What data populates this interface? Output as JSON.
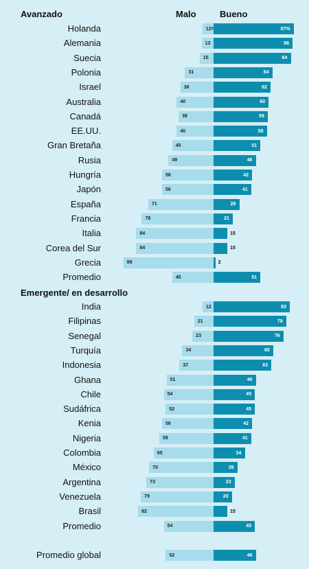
{
  "chart_data": {
    "type": "bar",
    "orientation": "horizontal-diverging",
    "headers": {
      "bad": "Malo",
      "good": "Bueno"
    },
    "colors": {
      "bad": "#a6dcec",
      "good": "#0e8eae",
      "background": "#d6eef5"
    },
    "groups": [
      {
        "name": "Avanzado",
        "rows": [
          {
            "country": "Holanda",
            "malo": 12,
            "bueno": 87,
            "malo_label": "12%",
            "bueno_label": "87%"
          },
          {
            "country": "Alemania",
            "malo": 13,
            "bueno": 86
          },
          {
            "country": "Suecia",
            "malo": 15,
            "bueno": 84
          },
          {
            "country": "Polonia",
            "malo": 31,
            "bueno": 64
          },
          {
            "country": "Israel",
            "malo": 36,
            "bueno": 62
          },
          {
            "country": "Australia",
            "malo": 40,
            "bueno": 60
          },
          {
            "country": "Canadá",
            "malo": 38,
            "bueno": 59
          },
          {
            "country": "EE.UU.",
            "malo": 40,
            "bueno": 58
          },
          {
            "country": "Gran Bretaña",
            "malo": 45,
            "bueno": 51
          },
          {
            "country": "Rusia",
            "malo": 49,
            "bueno": 46
          },
          {
            "country": "Hungría",
            "malo": 56,
            "bueno": 42
          },
          {
            "country": "Japón",
            "malo": 56,
            "bueno": 41
          },
          {
            "country": "España",
            "malo": 71,
            "bueno": 28
          },
          {
            "country": "Francia",
            "malo": 78,
            "bueno": 21
          },
          {
            "country": "Italia",
            "malo": 84,
            "bueno": 15
          },
          {
            "country": "Corea del Sur",
            "malo": 84,
            "bueno": 15
          },
          {
            "country": "Grecia",
            "malo": 98,
            "bueno": 2
          },
          {
            "country": "Promedio",
            "malo": 45,
            "bueno": 51
          }
        ]
      },
      {
        "name": "Emergente/ en desarrollo",
        "rows": [
          {
            "country": "India",
            "malo": 12,
            "bueno": 83
          },
          {
            "country": "Filipinas",
            "malo": 21,
            "bueno": 79
          },
          {
            "country": "Senegal",
            "malo": 23,
            "bueno": 76
          },
          {
            "country": "Turquía",
            "malo": 34,
            "bueno": 65
          },
          {
            "country": "Indonesia",
            "malo": 37,
            "bueno": 63
          },
          {
            "country": "Ghana",
            "malo": 51,
            "bueno": 46
          },
          {
            "country": "Chile",
            "malo": 54,
            "bueno": 45
          },
          {
            "country": "Sudáfrica",
            "malo": 52,
            "bueno": 45
          },
          {
            "country": "Kenia",
            "malo": 56,
            "bueno": 42
          },
          {
            "country": "Nigeria",
            "malo": 59,
            "bueno": 41
          },
          {
            "country": "Colombia",
            "malo": 65,
            "bueno": 34
          },
          {
            "country": "México",
            "malo": 70,
            "bueno": 26
          },
          {
            "country": "Argentina",
            "malo": 73,
            "bueno": 23
          },
          {
            "country": "Venezuela",
            "malo": 79,
            "bueno": 20
          },
          {
            "country": "Brasil",
            "malo": 82,
            "bueno": 15
          },
          {
            "country": "Promedio",
            "malo": 54,
            "bueno": 45
          }
        ]
      },
      {
        "name": "",
        "rows": [
          {
            "country": "Promedio global",
            "malo": 52,
            "bueno": 46
          }
        ]
      }
    ]
  }
}
